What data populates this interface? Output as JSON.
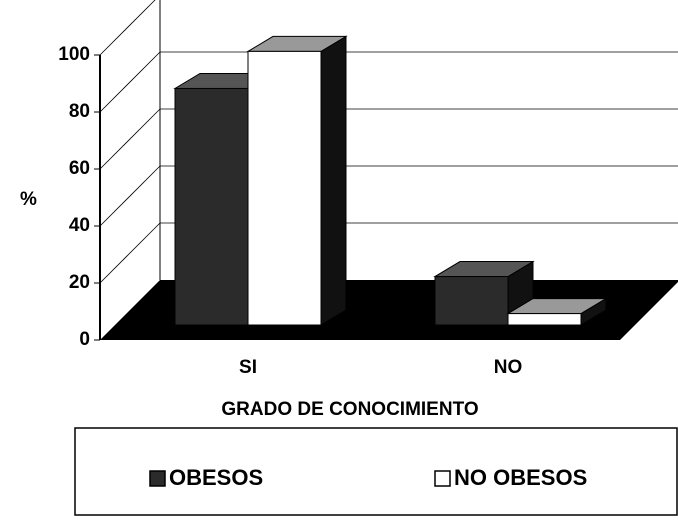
{
  "chart_data": {
    "type": "bar3d",
    "categories": [
      "SI",
      "NO"
    ],
    "series": [
      {
        "name": "OBESOS",
        "color": "#2b2b2b",
        "values": [
          83,
          17
        ]
      },
      {
        "name": "NO OBESOS",
        "color": "#ffffff",
        "values": [
          96,
          4
        ]
      }
    ],
    "ylabel": "%",
    "xlabel": "GRADO DE CONOCIMIENTO",
    "ylim": [
      0,
      100
    ],
    "yticks": [
      0,
      20,
      40,
      60,
      80,
      100
    ],
    "grid": true,
    "legend": "bottom"
  }
}
